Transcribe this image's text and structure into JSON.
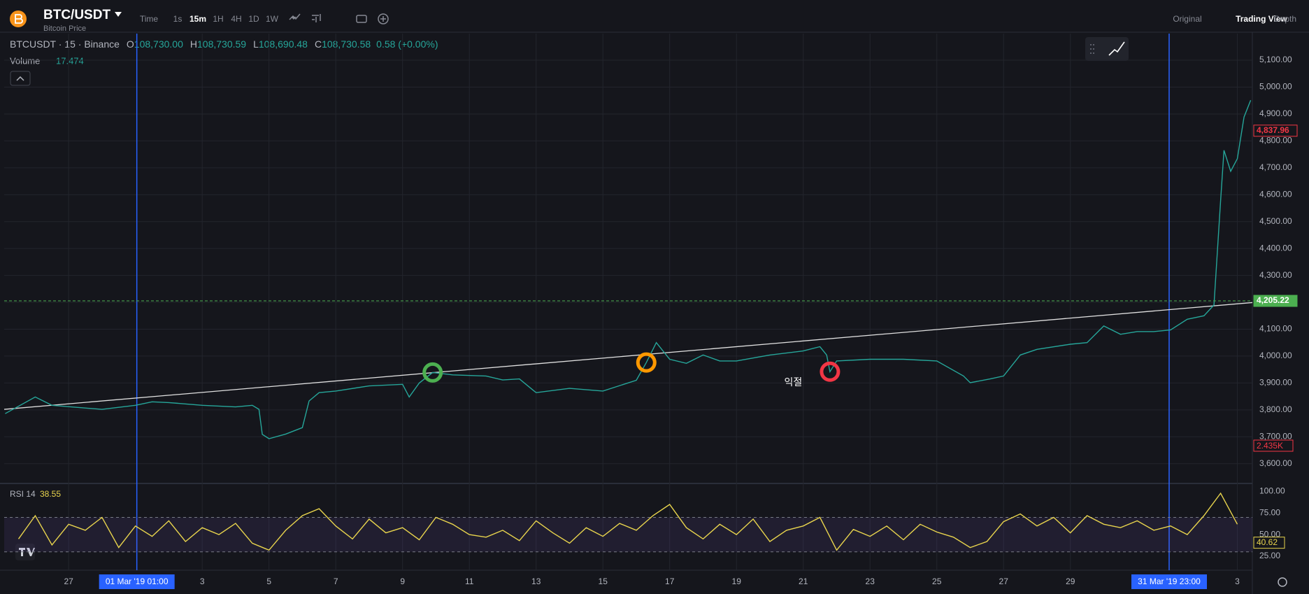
{
  "header": {
    "symbol": "BTC/USDT",
    "subtitle": "Bitcoin Price",
    "timeframes": [
      "Time",
      "1s",
      "15m",
      "1H",
      "4H",
      "1D",
      "1W"
    ],
    "views": [
      "Original",
      "Trading View",
      "Depth"
    ]
  },
  "legend": {
    "instrument": "BTCUSDT · 15 · Binance",
    "ohlc": [
      {
        "label": "O",
        "value": "108,730.00"
      },
      {
        "label": "H",
        "value": "108,730.59"
      },
      {
        "label": "L",
        "value": "108,690.48"
      },
      {
        "label": "C",
        "value": "108,730.58"
      }
    ],
    "change": "0.58 (+0.00%)",
    "volume_label": "Volume",
    "volume": "17.474",
    "volume_axis_label": "2.435K"
  },
  "chart_data": [
    {
      "type": "line",
      "color": "#26a69a",
      "x": [
        -3.9,
        -3,
        -2.5,
        -1,
        0,
        0.5,
        1,
        2,
        3,
        3.5,
        3.7,
        3.8,
        4,
        4.5,
        5,
        5.2,
        5.5,
        6,
        7,
        8,
        8.2,
        8.5,
        8.9,
        9.5,
        10.5,
        11,
        11.5,
        12,
        13,
        14,
        15,
        15.3,
        15.6,
        16,
        16.5,
        17,
        17.5,
        18,
        19,
        20,
        20.5,
        20.7,
        20.8,
        21,
        22,
        23,
        24,
        24.8,
        25,
        25.6,
        26,
        26.5,
        27,
        28,
        28.5,
        29,
        29.5,
        30,
        30.5,
        31,
        31.5,
        32,
        32.3,
        32.5,
        32.6,
        32.8,
        33,
        33.2,
        33.4
      ],
      "values": [
        3786,
        3848,
        3817,
        3802,
        3817,
        3830,
        3827,
        3817,
        3811,
        3817,
        3802,
        3709,
        3693,
        3710,
        3734,
        3833,
        3864,
        3870,
        3889,
        3895,
        3848,
        3900,
        3939,
        3930,
        3926,
        3911,
        3915,
        3864,
        3880,
        3870,
        3910,
        3976,
        4050,
        3988,
        3973,
        4004,
        3982,
        3982,
        4004,
        4019,
        4035,
        4004,
        3942,
        3982,
        3988,
        3988,
        3982,
        3926,
        3901,
        3915,
        3926,
        4004,
        4025,
        4044,
        4050,
        4112,
        4081,
        4091,
        4091,
        4097,
        4137,
        4150,
        4190,
        4578,
        4765,
        4687,
        4734,
        4889,
        4951
      ],
      "xlim": [
        -3.93,
        33.45
      ],
      "xticks": [
        {
          "value": -2,
          "label": "27"
        },
        {
          "value": 2,
          "label": "3"
        },
        {
          "value": 4,
          "label": "5"
        },
        {
          "value": 6,
          "label": "7"
        },
        {
          "value": 8,
          "label": "9"
        },
        {
          "value": 10,
          "label": "11"
        },
        {
          "value": 12,
          "label": "13"
        },
        {
          "value": 14,
          "label": "15"
        },
        {
          "value": 16,
          "label": "17"
        },
        {
          "value": 18,
          "label": "19"
        },
        {
          "value": 20,
          "label": "21"
        },
        {
          "value": 22,
          "label": "23"
        },
        {
          "value": 24,
          "label": "25"
        },
        {
          "value": 26,
          "label": "27"
        },
        {
          "value": 28,
          "label": "29"
        },
        {
          "value": 33,
          "label": "3"
        }
      ],
      "ylim": [
        3529,
        5199
      ],
      "yticks": [
        {
          "value": 3600,
          "label": "3,600.00"
        },
        {
          "value": 3700,
          "label": "3,700.00"
        },
        {
          "value": 3800,
          "label": "3,800.00"
        },
        {
          "value": 3900,
          "label": "3,900.00"
        },
        {
          "value": 4000,
          "label": "4,000.00"
        },
        {
          "value": 4100,
          "label": "4,100.00"
        },
        {
          "value": 4200,
          "label": "4,200.00"
        },
        {
          "value": 4300,
          "label": "4,300.00"
        },
        {
          "value": 4400,
          "label": "4,400.00"
        },
        {
          "value": 4500,
          "label": "4,500.00"
        },
        {
          "value": 4600,
          "label": "4,600.00"
        },
        {
          "value": 4700,
          "label": "4,700.00"
        },
        {
          "value": 4800,
          "label": "4,800.00"
        },
        {
          "value": 4900,
          "label": "4,900.00"
        },
        {
          "value": 5000,
          "label": "5,000.00"
        },
        {
          "value": 5100,
          "label": "5,100.00"
        }
      ],
      "grid": true,
      "markers": [
        {
          "x": 0.0417,
          "label": "01 Mar '19  01:00",
          "color": "#2962ff"
        },
        {
          "x": 30.958,
          "label": "31 Mar '19  23:00",
          "color": "#2962ff"
        }
      ],
      "trendline": {
        "x": [
          -3.93,
          33.45
        ],
        "values": [
          3802,
          4199
        ],
        "color": "#e0e0e0"
      },
      "price_lines": [
        {
          "value": 4205.22,
          "label": "4,205.22",
          "color": "#4caf50",
          "dashed": true
        },
        {
          "value": 4837.96,
          "label": "4,837.96",
          "color": "#f23645",
          "dashed": false
        }
      ],
      "signals": [
        {
          "x": 8.9,
          "y": 3939,
          "color": "#4caf50"
        },
        {
          "x": 15.3,
          "y": 3976,
          "color": "#ff9800"
        },
        {
          "x": 20.8,
          "y": 3942,
          "color": "#f23645"
        }
      ],
      "annotations": [
        {
          "text": "익절",
          "x": 19.7,
          "y": 3900
        }
      ]
    },
    {
      "type": "line",
      "title": "RSI 14",
      "legend_value": 38.55,
      "axis_value": 40.62,
      "color": "#e8d44d",
      "x": [
        -3.5,
        -3,
        -2.5,
        -2,
        -1.5,
        -1,
        -0.5,
        0,
        0.5,
        1,
        1.5,
        2,
        2.5,
        3,
        3.5,
        4,
        4.5,
        5,
        5.5,
        6,
        6.5,
        7,
        7.5,
        8,
        8.5,
        9,
        9.5,
        10,
        10.5,
        11,
        11.5,
        12,
        12.5,
        13,
        13.5,
        14,
        14.5,
        15,
        15.5,
        16,
        16.5,
        17,
        17.5,
        18,
        18.5,
        19,
        19.5,
        20,
        20.5,
        21,
        21.5,
        22,
        22.5,
        23,
        23.5,
        24,
        24.5,
        25,
        25.5,
        26,
        26.5,
        27,
        27.5,
        28,
        28.5,
        29,
        29.5,
        30,
        30.5,
        31,
        31.5,
        32,
        32.5,
        33
      ],
      "values": [
        45,
        72,
        38,
        62,
        55,
        70,
        35,
        60,
        48,
        66,
        42,
        58,
        50,
        63,
        40,
        32,
        55,
        72,
        80,
        60,
        45,
        68,
        52,
        58,
        44,
        70,
        62,
        50,
        47,
        55,
        43,
        66,
        52,
        40,
        58,
        48,
        63,
        55,
        72,
        85,
        58,
        45,
        62,
        50,
        68,
        42,
        55,
        60,
        70,
        32,
        56,
        48,
        60,
        44,
        62,
        53,
        47,
        35,
        42,
        65,
        74,
        60,
        70,
        52,
        72,
        62,
        58,
        66,
        55,
        60,
        50,
        72,
        98,
        62
      ],
      "xlim": [
        -3.93,
        33.45
      ],
      "ylim": [
        8.7,
        107.7
      ],
      "yticks": [
        {
          "value": 25,
          "label": "25.00"
        },
        {
          "value": 50,
          "label": "50.00"
        },
        {
          "value": 75,
          "label": "75.00"
        },
        {
          "value": 100,
          "label": "100.00"
        }
      ],
      "bands": [
        30,
        70
      ]
    }
  ]
}
